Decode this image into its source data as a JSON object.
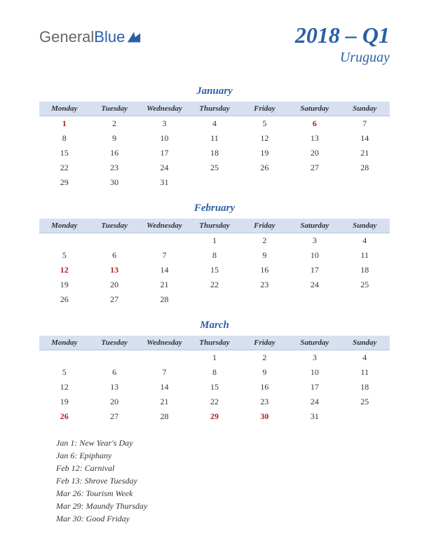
{
  "logo": {
    "gray": "General",
    "blue": "Blue"
  },
  "title": {
    "main": "2018 – Q1",
    "sub": "Uruguay"
  },
  "colors": {
    "brand": "#2b5fa8",
    "header_bg": "#d6e0f0",
    "holiday": "#b02020",
    "text": "#333333"
  },
  "day_headers": [
    "Monday",
    "Tuesday",
    "Wednesday",
    "Thursday",
    "Friday",
    "Saturday",
    "Sunday"
  ],
  "months": [
    {
      "name": "January",
      "weeks": [
        [
          {
            "d": 1,
            "h": true
          },
          {
            "d": 2
          },
          {
            "d": 3
          },
          {
            "d": 4
          },
          {
            "d": 5
          },
          {
            "d": 6,
            "h": true
          },
          {
            "d": 7
          }
        ],
        [
          {
            "d": 8
          },
          {
            "d": 9
          },
          {
            "d": 10
          },
          {
            "d": 11
          },
          {
            "d": 12
          },
          {
            "d": 13
          },
          {
            "d": 14
          }
        ],
        [
          {
            "d": 15
          },
          {
            "d": 16
          },
          {
            "d": 17
          },
          {
            "d": 18
          },
          {
            "d": 19
          },
          {
            "d": 20
          },
          {
            "d": 21
          }
        ],
        [
          {
            "d": 22
          },
          {
            "d": 23
          },
          {
            "d": 24
          },
          {
            "d": 25
          },
          {
            "d": 26
          },
          {
            "d": 27
          },
          {
            "d": 28
          }
        ],
        [
          {
            "d": 29
          },
          {
            "d": 30
          },
          {
            "d": 31
          },
          null,
          null,
          null,
          null
        ]
      ]
    },
    {
      "name": "February",
      "weeks": [
        [
          null,
          null,
          null,
          {
            "d": 1
          },
          {
            "d": 2
          },
          {
            "d": 3
          },
          {
            "d": 4
          }
        ],
        [
          {
            "d": 5
          },
          {
            "d": 6
          },
          {
            "d": 7
          },
          {
            "d": 8
          },
          {
            "d": 9
          },
          {
            "d": 10
          },
          {
            "d": 11
          }
        ],
        [
          {
            "d": 12,
            "h": true
          },
          {
            "d": 13,
            "h": true
          },
          {
            "d": 14
          },
          {
            "d": 15
          },
          {
            "d": 16
          },
          {
            "d": 17
          },
          {
            "d": 18
          }
        ],
        [
          {
            "d": 19
          },
          {
            "d": 20
          },
          {
            "d": 21
          },
          {
            "d": 22
          },
          {
            "d": 23
          },
          {
            "d": 24
          },
          {
            "d": 25
          }
        ],
        [
          {
            "d": 26
          },
          {
            "d": 27
          },
          {
            "d": 28
          },
          null,
          null,
          null,
          null
        ]
      ]
    },
    {
      "name": "March",
      "weeks": [
        [
          null,
          null,
          null,
          {
            "d": 1
          },
          {
            "d": 2
          },
          {
            "d": 3
          },
          {
            "d": 4
          }
        ],
        [
          {
            "d": 5
          },
          {
            "d": 6
          },
          {
            "d": 7
          },
          {
            "d": 8
          },
          {
            "d": 9
          },
          {
            "d": 10
          },
          {
            "d": 11
          }
        ],
        [
          {
            "d": 12
          },
          {
            "d": 13
          },
          {
            "d": 14
          },
          {
            "d": 15
          },
          {
            "d": 16
          },
          {
            "d": 17
          },
          {
            "d": 18
          }
        ],
        [
          {
            "d": 19
          },
          {
            "d": 20
          },
          {
            "d": 21
          },
          {
            "d": 22
          },
          {
            "d": 23
          },
          {
            "d": 24
          },
          {
            "d": 25
          }
        ],
        [
          {
            "d": 26,
            "h": true
          },
          {
            "d": 27
          },
          {
            "d": 28
          },
          {
            "d": 29,
            "h": true
          },
          {
            "d": 30,
            "h": true
          },
          {
            "d": 31
          },
          null
        ]
      ]
    }
  ],
  "holidays": [
    "Jan 1: New Year's Day",
    "Jan 6: Epiphany",
    "Feb 12: Carnival",
    "Feb 13: Shrove Tuesday",
    "Mar 26: Tourism Week",
    "Mar 29: Maundy Thursday",
    "Mar 30: Good Friday"
  ]
}
